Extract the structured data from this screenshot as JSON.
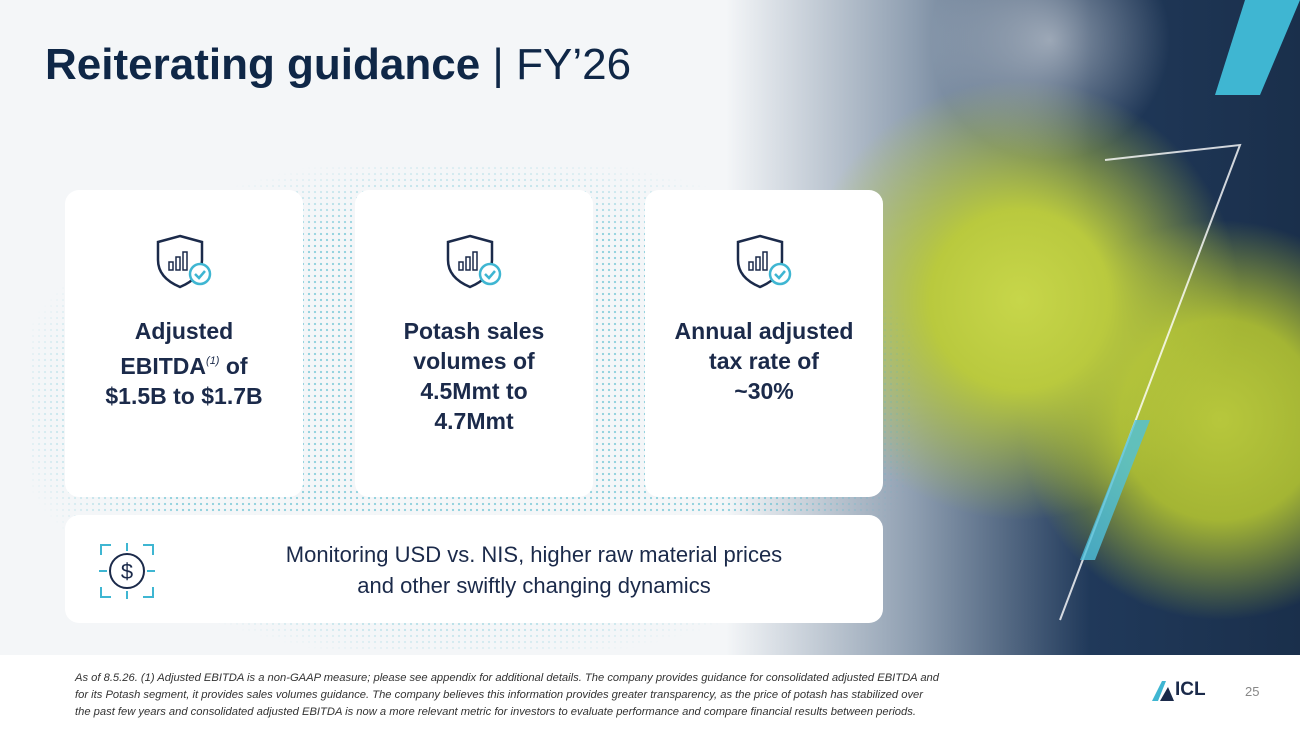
{
  "header": {
    "title": "Reiterating guidance",
    "separator": "|",
    "suffix": "FY’26"
  },
  "cards": [
    {
      "line1": "Adjusted",
      "line2": "EBITDA",
      "superscript": "(1)",
      "line2_end": "of",
      "line3": "$1.5B to $1.7B"
    },
    {
      "lines": [
        "Potash sales",
        "volumes of",
        "4.5Mmt to",
        "4.7Mmt"
      ]
    },
    {
      "lines": [
        "Annual adjusted",
        "tax rate of",
        "~30%"
      ]
    }
  ],
  "banner": {
    "lines": [
      "Monitoring USD vs. NIS, higher raw material prices",
      "and other swiftly changing dynamics"
    ]
  },
  "footnote": {
    "lines": [
      "As of 8.5.26. (1) Adjusted EBITDA is a non-GAAP measure; please see appendix for additional details. The company provides guidance for consolidated adjusted EBITDA and",
      "for its Potash segment, it provides sales volumes guidance. The company believes this information provides greater transparency, as the price of potash has stabilized over",
      "the past few years and consolidated adjusted EBITDA is now a more relevant metric for investors to evaluate performance and compare financial results between periods."
    ]
  },
  "logo": "ICL",
  "page_number": "25"
}
